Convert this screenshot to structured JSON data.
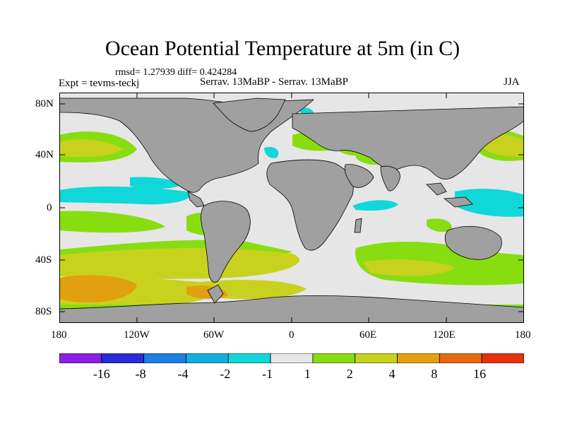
{
  "title": "Ocean Potential Temperature at 5m (in C)",
  "stats": "rmsd= 1.27939 diff= 0.424284",
  "expt_label": "Expt = tevms-teckj",
  "comparison_label": "Serrav.  13MaBP - Serrav.  13MaBP",
  "season": "JJA",
  "map": {
    "y_ticks": [
      "80N",
      "40N",
      "0",
      "40S",
      "80S"
    ],
    "x_ticks": [
      "180",
      "120W",
      "60W",
      "0",
      "60E",
      "120E",
      "180"
    ],
    "land_color": "#a0a0a0",
    "ocean_background_color": "#e6e6e6"
  },
  "colorbar": {
    "labels": [
      "-16",
      "-8",
      "-4",
      "-2",
      "-1",
      "1",
      "2",
      "4",
      "8",
      "16"
    ],
    "colors": [
      "#8a1ee6",
      "#2b2bd8",
      "#1e7de6",
      "#11aee0",
      "#10d8d8",
      "#e6e6e6",
      "#88dd11",
      "#c8d21e",
      "#e0a010",
      "#e66a10",
      "#e6320f"
    ]
  }
}
